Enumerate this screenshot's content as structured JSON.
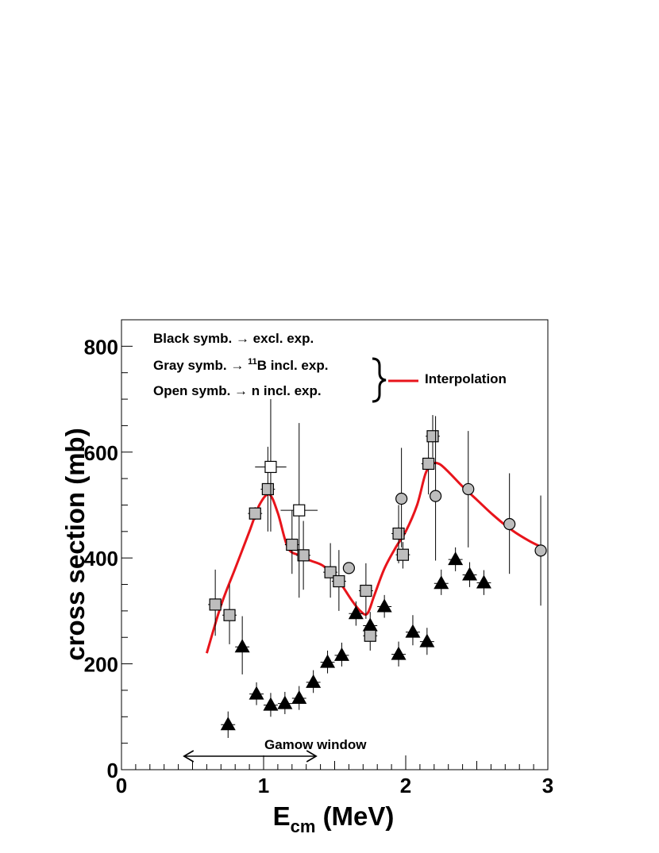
{
  "chart_data": {
    "type": "scatter",
    "xlabel_main": "E",
    "xlabel_sub": "cm",
    "xlabel_unit": "(MeV)",
    "ylabel": "cross section (mb)",
    "xlim": [
      0,
      3
    ],
    "ylim": [
      0,
      850
    ],
    "xticks": [
      0,
      1,
      2,
      3
    ],
    "yticks": [
      0,
      200,
      400,
      600,
      800
    ],
    "legend": {
      "black": [
        "Black symb. ",
        "→",
        " excl. exp."
      ],
      "gray": [
        "Gray symb. ",
        "→",
        " ",
        "11",
        "B incl. exp."
      ],
      "open": [
        "Open symb. ",
        "→",
        " n incl. exp."
      ],
      "interp_label": "Interpolation"
    },
    "gamow": {
      "label": "Gamow window",
      "range": [
        0.44,
        1.37
      ]
    },
    "colors": {
      "interpolation": "#e8141b",
      "gray_fill": "#bdbdbd",
      "black": "#000000"
    },
    "series": [
      {
        "marker": "triangle",
        "points": [
          {
            "x": 0.75,
            "y": 85,
            "xerr": 0.05,
            "ylo": 60,
            "yhi": 110
          },
          {
            "x": 0.85,
            "y": 232,
            "xerr": 0.05,
            "ylo": 180,
            "yhi": 290
          },
          {
            "x": 0.95,
            "y": 143,
            "xerr": 0.05,
            "ylo": 122,
            "yhi": 165
          },
          {
            "x": 1.05,
            "y": 122,
            "xerr": 0.05,
            "ylo": 100,
            "yhi": 145
          },
          {
            "x": 1.15,
            "y": 125,
            "xerr": 0.05,
            "ylo": 105,
            "yhi": 147
          },
          {
            "x": 1.25,
            "y": 135,
            "xerr": 0.05,
            "ylo": 113,
            "yhi": 158
          },
          {
            "x": 1.35,
            "y": 165,
            "xerr": 0.05,
            "ylo": 145,
            "yhi": 188
          },
          {
            "x": 1.45,
            "y": 203,
            "xerr": 0.05,
            "ylo": 182,
            "yhi": 225
          },
          {
            "x": 1.55,
            "y": 216,
            "xerr": 0.05,
            "ylo": 195,
            "yhi": 240
          },
          {
            "x": 1.65,
            "y": 295,
            "xerr": 0.05,
            "ylo": 272,
            "yhi": 318
          },
          {
            "x": 1.75,
            "y": 272,
            "xerr": 0.05,
            "ylo": 250,
            "yhi": 298
          },
          {
            "x": 1.85,
            "y": 308,
            "xerr": 0.05,
            "ylo": 287,
            "yhi": 330
          },
          {
            "x": 1.95,
            "y": 218,
            "xerr": 0.05,
            "ylo": 195,
            "yhi": 242
          },
          {
            "x": 2.05,
            "y": 260,
            "xerr": 0.05,
            "ylo": 235,
            "yhi": 292
          },
          {
            "x": 2.15,
            "y": 242,
            "xerr": 0.05,
            "ylo": 217,
            "yhi": 268
          },
          {
            "x": 2.25,
            "y": 352,
            "xerr": 0.05,
            "ylo": 330,
            "yhi": 378
          },
          {
            "x": 2.35,
            "y": 397,
            "xerr": 0.05,
            "ylo": 375,
            "yhi": 420
          },
          {
            "x": 2.45,
            "y": 368,
            "xerr": 0.05,
            "ylo": 345,
            "yhi": 392
          },
          {
            "x": 2.55,
            "y": 353,
            "xerr": 0.05,
            "ylo": 330,
            "yhi": 377
          }
        ]
      },
      {
        "marker": "gray-square",
        "points": [
          {
            "x": 0.66,
            "y": 312,
            "xerr": 0.05,
            "ylo": 253,
            "yhi": 378
          },
          {
            "x": 0.76,
            "y": 292,
            "xerr": 0.05,
            "ylo": 237,
            "yhi": 350
          },
          {
            "x": 0.94,
            "y": 484,
            "xerr": 0.05,
            "ylo": 472,
            "yhi": 496
          },
          {
            "x": 1.03,
            "y": 530,
            "xerr": 0.05,
            "ylo": 450,
            "yhi": 610
          },
          {
            "x": 1.2,
            "y": 425,
            "xerr": 0.05,
            "ylo": 370,
            "yhi": 490
          },
          {
            "x": 1.28,
            "y": 405,
            "xerr": 0.05,
            "ylo": 340,
            "yhi": 470
          },
          {
            "x": 1.47,
            "y": 373,
            "xerr": 0.05,
            "ylo": 325,
            "yhi": 428
          },
          {
            "x": 1.53,
            "y": 356,
            "xerr": 0.05,
            "ylo": 300,
            "yhi": 415
          },
          {
            "x": 1.72,
            "y": 338,
            "xerr": 0.05,
            "ylo": 285,
            "yhi": 390
          },
          {
            "x": 1.75,
            "y": 253,
            "xerr": 0.05,
            "ylo": 225,
            "yhi": 282
          },
          {
            "x": 1.95,
            "y": 446,
            "xerr": 0.05,
            "ylo": 390,
            "yhi": 500
          },
          {
            "x": 1.98,
            "y": 406,
            "xerr": 0.05,
            "ylo": 380,
            "yhi": 430
          },
          {
            "x": 2.16,
            "y": 578,
            "xerr": 0.05,
            "ylo": 520,
            "yhi": 640
          },
          {
            "x": 2.19,
            "y": 630,
            "xerr": 0.05,
            "ylo": 590,
            "yhi": 670
          }
        ]
      },
      {
        "marker": "open-square",
        "points": [
          {
            "x": 1.05,
            "y": 572,
            "xerr": 0.11,
            "ylo": 450,
            "yhi": 700
          },
          {
            "x": 1.25,
            "y": 490,
            "xerr": 0.13,
            "ylo": 325,
            "yhi": 655
          }
        ]
      },
      {
        "marker": "gray-circle",
        "points": [
          {
            "x": 1.6,
            "y": 381,
            "xerr": 0,
            "ylo": 381,
            "yhi": 381
          },
          {
            "x": 1.97,
            "y": 512,
            "xerr": 0,
            "ylo": 420,
            "yhi": 608
          },
          {
            "x": 2.21,
            "y": 517,
            "xerr": 0,
            "ylo": 395,
            "yhi": 668
          },
          {
            "x": 2.44,
            "y": 530,
            "xerr": 0,
            "ylo": 420,
            "yhi": 640
          },
          {
            "x": 2.73,
            "y": 464,
            "xerr": 0,
            "ylo": 370,
            "yhi": 560
          },
          {
            "x": 2.95,
            "y": 414,
            "xerr": 0,
            "ylo": 310,
            "yhi": 518
          }
        ]
      }
    ],
    "interpolation": {
      "x": [
        0.6,
        0.7,
        0.8,
        0.9,
        0.97,
        1.04,
        1.1,
        1.17,
        1.25,
        1.33,
        1.42,
        1.52,
        1.62,
        1.68,
        1.73,
        1.78,
        1.85,
        1.93,
        2.0,
        2.08,
        2.14,
        2.19,
        2.24,
        2.31,
        2.4,
        2.5,
        2.62,
        2.75,
        2.87,
        2.96
      ],
      "y": [
        220,
        310,
        380,
        450,
        500,
        520,
        485,
        420,
        405,
        395,
        385,
        360,
        320,
        300,
        295,
        330,
        380,
        420,
        450,
        500,
        560,
        578,
        577,
        560,
        535,
        510,
        480,
        452,
        432,
        420
      ]
    }
  }
}
